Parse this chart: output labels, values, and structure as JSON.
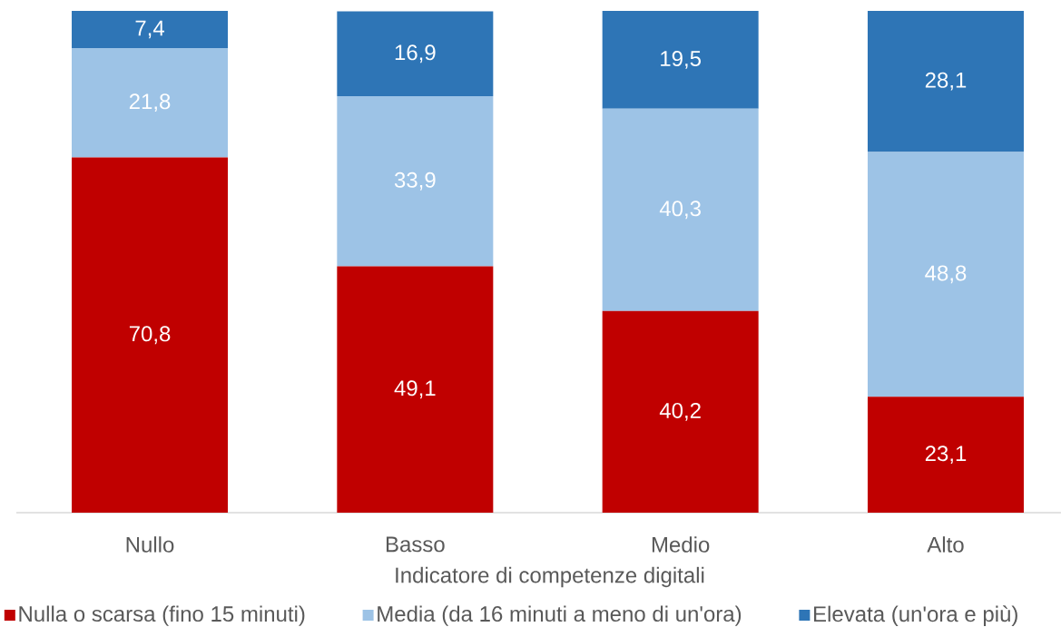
{
  "chart_data": {
    "type": "bar",
    "stacked": true,
    "xlabel": "Indicatore di competenze digitali",
    "categories": [
      "Nullo",
      "Basso",
      "Medio",
      "Alto"
    ],
    "series": [
      {
        "name": "Nulla o scarsa (fino 15 minuti)",
        "color": "#c00000",
        "values": [
          70.8,
          49.1,
          40.2,
          23.1
        ],
        "value_labels": [
          "70,8",
          "49,1",
          "40,2",
          "23,1"
        ]
      },
      {
        "name": "Media (da 16 minuti a meno di un'ora)",
        "color": "#9dc3e6",
        "values": [
          21.8,
          33.9,
          40.3,
          48.8
        ],
        "value_labels": [
          "21,8",
          "33,9",
          "40,3",
          "48,8"
        ]
      },
      {
        "name": "Elevata (un'ora e più)",
        "color": "#2e75b6",
        "values": [
          7.4,
          16.9,
          19.5,
          28.1
        ],
        "value_labels": [
          "7,4",
          "16,9",
          "19,5",
          "28,1"
        ]
      }
    ],
    "legend": "bottom"
  }
}
